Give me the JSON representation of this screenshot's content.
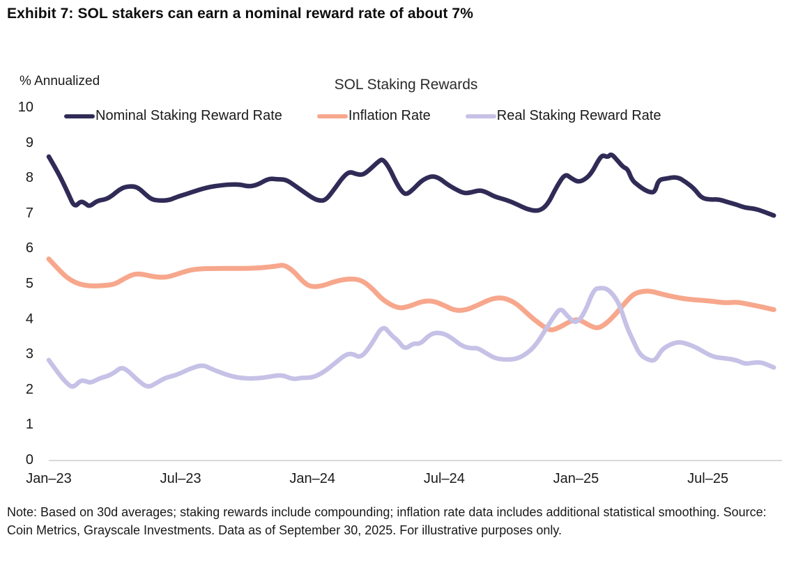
{
  "header": {
    "title": "Exhibit 7: SOL stakers can earn a nominal reward rate of about 7%"
  },
  "footnote": "Note: Based on 30d averages; staking rewards include compounding; inflation rate data includes additional statistical smoothing. Source: Coin Metrics, Grayscale Investments. Data as of September 30, 2025. For illustrative purposes only.",
  "chart_data": {
    "type": "line",
    "title": "SOL Staking Rewards",
    "ylabel": "% Annualized",
    "xlabel": "",
    "ylim": [
      0,
      10
    ],
    "yticks": [
      0,
      1,
      2,
      3,
      4,
      5,
      6,
      7,
      8,
      9,
      10
    ],
    "x_unit": "months since Jan-2023",
    "xlim": [
      0,
      33
    ],
    "xticks": [
      {
        "t": 0,
        "label": "Jan–23"
      },
      {
        "t": 6,
        "label": "Jul–23"
      },
      {
        "t": 12,
        "label": "Jan–24"
      },
      {
        "t": 18,
        "label": "Jul–24"
      },
      {
        "t": 24,
        "label": "Jan–25"
      },
      {
        "t": 30,
        "label": "Jul–25"
      }
    ],
    "grid": "x-axis baseline only",
    "legend_position": "top",
    "colors": {
      "baseline": "#d9d9d9",
      "text": "#1a1a1a"
    },
    "series": [
      {
        "name": "Nominal Staking Reward Rate",
        "color": "#302b56",
        "points": [
          [
            0,
            8.62
          ],
          [
            0.3,
            8.3
          ],
          [
            0.6,
            7.95
          ],
          [
            0.9,
            7.55
          ],
          [
            1.17,
            7.18
          ],
          [
            1.45,
            7.36
          ],
          [
            1.65,
            7.3
          ],
          [
            1.85,
            7.2
          ],
          [
            2.2,
            7.37
          ],
          [
            2.6,
            7.41
          ],
          [
            2.9,
            7.52
          ],
          [
            3.2,
            7.68
          ],
          [
            3.5,
            7.77
          ],
          [
            3.9,
            7.78
          ],
          [
            4.15,
            7.7
          ],
          [
            4.4,
            7.55
          ],
          [
            4.7,
            7.4
          ],
          [
            5.1,
            7.37
          ],
          [
            5.5,
            7.39
          ],
          [
            5.8,
            7.47
          ],
          [
            6.3,
            7.57
          ],
          [
            6.6,
            7.63
          ],
          [
            7.1,
            7.73
          ],
          [
            7.6,
            7.79
          ],
          [
            8.2,
            7.83
          ],
          [
            8.7,
            7.83
          ],
          [
            9.1,
            7.77
          ],
          [
            9.5,
            7.82
          ],
          [
            10,
            8.0
          ],
          [
            10.4,
            7.98
          ],
          [
            10.8,
            7.97
          ],
          [
            11.2,
            7.8
          ],
          [
            11.65,
            7.6
          ],
          [
            12,
            7.45
          ],
          [
            12.3,
            7.37
          ],
          [
            12.6,
            7.38
          ],
          [
            13,
            7.7
          ],
          [
            13.4,
            8.05
          ],
          [
            13.7,
            8.2
          ],
          [
            14,
            8.12
          ],
          [
            14.3,
            8.1
          ],
          [
            14.6,
            8.25
          ],
          [
            15,
            8.48
          ],
          [
            15.2,
            8.56
          ],
          [
            15.5,
            8.3
          ],
          [
            15.8,
            7.9
          ],
          [
            16.1,
            7.6
          ],
          [
            16.3,
            7.55
          ],
          [
            16.6,
            7.7
          ],
          [
            16.9,
            7.9
          ],
          [
            17.2,
            8.02
          ],
          [
            17.5,
            8.07
          ],
          [
            17.8,
            8.0
          ],
          [
            18.1,
            7.85
          ],
          [
            18.5,
            7.7
          ],
          [
            18.9,
            7.58
          ],
          [
            19.2,
            7.6
          ],
          [
            19.6,
            7.67
          ],
          [
            19.9,
            7.62
          ],
          [
            20.3,
            7.48
          ],
          [
            20.8,
            7.4
          ],
          [
            21.3,
            7.27
          ],
          [
            21.8,
            7.12
          ],
          [
            22.3,
            7.07
          ],
          [
            22.7,
            7.25
          ],
          [
            23.1,
            7.75
          ],
          [
            23.5,
            8.14
          ],
          [
            23.8,
            8.0
          ],
          [
            24.1,
            7.9
          ],
          [
            24.4,
            7.97
          ],
          [
            24.7,
            8.15
          ],
          [
            25,
            8.5
          ],
          [
            25.2,
            8.67
          ],
          [
            25.45,
            8.6
          ],
          [
            25.6,
            8.71
          ],
          [
            25.9,
            8.5
          ],
          [
            26.15,
            8.32
          ],
          [
            26.35,
            8.27
          ],
          [
            26.55,
            7.95
          ],
          [
            26.8,
            7.82
          ],
          [
            27.1,
            7.68
          ],
          [
            27.4,
            7.6
          ],
          [
            27.6,
            7.63
          ],
          [
            27.75,
            7.96
          ],
          [
            28.1,
            8.0
          ],
          [
            28.6,
            8.05
          ],
          [
            29,
            7.9
          ],
          [
            29.4,
            7.7
          ],
          [
            29.7,
            7.45
          ],
          [
            30.1,
            7.4
          ],
          [
            30.5,
            7.41
          ],
          [
            30.9,
            7.33
          ],
          [
            31.3,
            7.26
          ],
          [
            31.7,
            7.17
          ],
          [
            32.1,
            7.15
          ],
          [
            32.5,
            7.07
          ],
          [
            33,
            6.95
          ]
        ]
      },
      {
        "name": "Inflation Rate",
        "color": "#f7a78c",
        "points": [
          [
            0,
            5.72
          ],
          [
            0.4,
            5.45
          ],
          [
            0.8,
            5.2
          ],
          [
            1.2,
            5.05
          ],
          [
            1.6,
            4.97
          ],
          [
            2,
            4.95
          ],
          [
            2.5,
            4.96
          ],
          [
            3,
            5.0
          ],
          [
            3.4,
            5.15
          ],
          [
            3.9,
            5.3
          ],
          [
            4.3,
            5.28
          ],
          [
            4.9,
            5.2
          ],
          [
            5.4,
            5.2
          ],
          [
            6,
            5.32
          ],
          [
            6.4,
            5.4
          ],
          [
            6.9,
            5.44
          ],
          [
            7.6,
            5.45
          ],
          [
            8.5,
            5.45
          ],
          [
            9.2,
            5.45
          ],
          [
            9.9,
            5.48
          ],
          [
            10.4,
            5.52
          ],
          [
            10.7,
            5.55
          ],
          [
            11.1,
            5.4
          ],
          [
            11.65,
            5.02
          ],
          [
            12,
            4.92
          ],
          [
            12.5,
            4.96
          ],
          [
            13,
            5.08
          ],
          [
            13.65,
            5.16
          ],
          [
            14.2,
            5.13
          ],
          [
            14.7,
            4.9
          ],
          [
            15.2,
            4.55
          ],
          [
            15.9,
            4.31
          ],
          [
            16.4,
            4.37
          ],
          [
            17,
            4.52
          ],
          [
            17.5,
            4.53
          ],
          [
            18,
            4.4
          ],
          [
            18.5,
            4.25
          ],
          [
            19,
            4.27
          ],
          [
            19.5,
            4.4
          ],
          [
            20,
            4.55
          ],
          [
            20.4,
            4.62
          ],
          [
            20.8,
            4.6
          ],
          [
            21.3,
            4.45
          ],
          [
            21.9,
            4.1
          ],
          [
            22.3,
            3.9
          ],
          [
            22.8,
            3.68
          ],
          [
            23.2,
            3.76
          ],
          [
            23.7,
            3.94
          ],
          [
            24.1,
            4.02
          ],
          [
            24.6,
            3.83
          ],
          [
            25,
            3.74
          ],
          [
            25.4,
            3.9
          ],
          [
            25.8,
            4.15
          ],
          [
            26.2,
            4.45
          ],
          [
            26.6,
            4.72
          ],
          [
            27,
            4.8
          ],
          [
            27.4,
            4.81
          ],
          [
            27.9,
            4.72
          ],
          [
            28.4,
            4.65
          ],
          [
            29,
            4.58
          ],
          [
            29.6,
            4.55
          ],
          [
            30.2,
            4.52
          ],
          [
            30.8,
            4.47
          ],
          [
            31.3,
            4.5
          ],
          [
            31.8,
            4.44
          ],
          [
            32.3,
            4.38
          ],
          [
            33,
            4.28
          ]
        ]
      },
      {
        "name": "Real Staking Reward Rate",
        "color": "#c6c1e6",
        "points": [
          [
            0,
            2.85
          ],
          [
            0.4,
            2.5
          ],
          [
            0.8,
            2.2
          ],
          [
            1.1,
            2.06
          ],
          [
            1.45,
            2.28
          ],
          [
            1.7,
            2.25
          ],
          [
            1.9,
            2.2
          ],
          [
            2.3,
            2.33
          ],
          [
            2.7,
            2.4
          ],
          [
            3,
            2.5
          ],
          [
            3.3,
            2.65
          ],
          [
            3.6,
            2.55
          ],
          [
            4,
            2.3
          ],
          [
            4.5,
            2.06
          ],
          [
            4.9,
            2.2
          ],
          [
            5.3,
            2.35
          ],
          [
            5.8,
            2.42
          ],
          [
            6.4,
            2.6
          ],
          [
            7,
            2.72
          ],
          [
            7.4,
            2.6
          ],
          [
            8,
            2.45
          ],
          [
            8.6,
            2.35
          ],
          [
            9.2,
            2.32
          ],
          [
            9.8,
            2.35
          ],
          [
            10.6,
            2.44
          ],
          [
            11.1,
            2.3
          ],
          [
            11.5,
            2.35
          ],
          [
            12,
            2.35
          ],
          [
            12.5,
            2.5
          ],
          [
            13,
            2.75
          ],
          [
            13.5,
            3.0
          ],
          [
            13.8,
            3.04
          ],
          [
            14.2,
            2.9
          ],
          [
            14.7,
            3.3
          ],
          [
            15.2,
            3.85
          ],
          [
            15.6,
            3.55
          ],
          [
            15.9,
            3.4
          ],
          [
            16.2,
            3.15
          ],
          [
            16.6,
            3.33
          ],
          [
            16.9,
            3.3
          ],
          [
            17.3,
            3.55
          ],
          [
            17.6,
            3.63
          ],
          [
            18,
            3.6
          ],
          [
            18.4,
            3.45
          ],
          [
            18.8,
            3.25
          ],
          [
            19.2,
            3.18
          ],
          [
            19.5,
            3.2
          ],
          [
            19.9,
            3.05
          ],
          [
            20.3,
            2.9
          ],
          [
            20.8,
            2.86
          ],
          [
            21.3,
            2.88
          ],
          [
            21.8,
            3.05
          ],
          [
            22.2,
            3.3
          ],
          [
            22.6,
            3.7
          ],
          [
            23,
            4.1
          ],
          [
            23.3,
            4.33
          ],
          [
            23.6,
            4.1
          ],
          [
            24,
            3.87
          ],
          [
            24.4,
            4.2
          ],
          [
            24.8,
            4.85
          ],
          [
            25.1,
            4.9
          ],
          [
            25.4,
            4.88
          ],
          [
            25.7,
            4.7
          ],
          [
            26,
            4.4
          ],
          [
            26.3,
            3.8
          ],
          [
            26.6,
            3.4
          ],
          [
            26.9,
            3.0
          ],
          [
            27.3,
            2.85
          ],
          [
            27.6,
            2.83
          ],
          [
            27.9,
            3.15
          ],
          [
            28.3,
            3.3
          ],
          [
            28.7,
            3.37
          ],
          [
            29.1,
            3.3
          ],
          [
            29.5,
            3.2
          ],
          [
            29.9,
            3.05
          ],
          [
            30.3,
            2.93
          ],
          [
            30.8,
            2.9
          ],
          [
            31.3,
            2.85
          ],
          [
            31.7,
            2.74
          ],
          [
            32,
            2.77
          ],
          [
            32.4,
            2.79
          ],
          [
            32.7,
            2.72
          ],
          [
            33,
            2.64
          ]
        ]
      }
    ]
  }
}
